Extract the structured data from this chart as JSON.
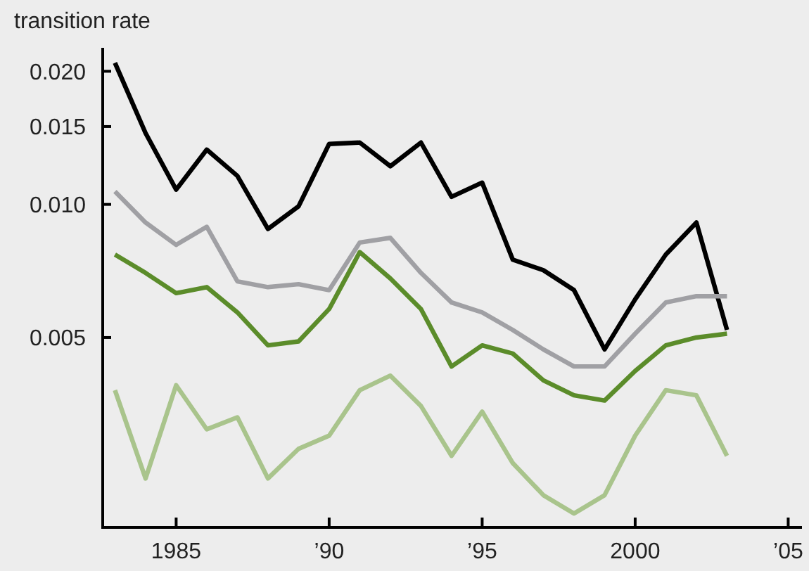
{
  "chart_data": {
    "type": "line",
    "ylabel": "transition rate",
    "log": "y",
    "grid": false,
    "marker": "none",
    "line_style": "solid",
    "x": [
      1983,
      1984,
      1985,
      1986,
      1987,
      1988,
      1989,
      1990,
      1991,
      1992,
      1993,
      1994,
      1995,
      1996,
      1997,
      1998,
      1999,
      2000,
      2001,
      2002,
      2003
    ],
    "xlim": [
      1982.6,
      2005.45
    ],
    "xticks": [
      1985,
      {
        "value": 1990,
        "label": "’90"
      },
      {
        "value": 1995,
        "label": "’95"
      },
      2000,
      {
        "value": 2005,
        "label": "’05"
      }
    ],
    "ylim": [
      0.00186,
      0.0226
    ],
    "yticks": [
      0.005,
      {
        "value": 0.01,
        "label": "0.010"
      },
      0.015,
      {
        "value": 0.02,
        "label": "0.020"
      }
    ],
    "series": [
      {
        "color": "#000000",
        "values": [
          0.0209,
          0.0145,
          0.0108,
          0.0133,
          0.0116,
          0.0088,
          0.0099,
          0.0137,
          0.0138,
          0.0122,
          0.0138,
          0.0104,
          0.0112,
          0.0075,
          0.0071,
          0.0064,
          0.0047,
          0.0061,
          0.0077,
          0.0091,
          0.0052
        ]
      },
      {
        "color": "#a0a0a4",
        "values": [
          0.0107,
          0.0091,
          0.0081,
          0.0089,
          0.0067,
          0.0065,
          0.0066,
          0.0064,
          0.0082,
          0.0084,
          0.007,
          0.006,
          0.0057,
          0.0052,
          0.0047,
          0.0043,
          0.0043,
          0.0051,
          0.006,
          0.0062,
          0.0062
        ]
      },
      {
        "color": "#5b8c2a",
        "values": [
          0.0077,
          0.007,
          0.0063,
          0.0065,
          0.0057,
          0.0048,
          0.0049,
          0.0058,
          0.0078,
          0.0068,
          0.0058,
          0.0043,
          0.0048,
          0.0046,
          0.004,
          0.0037,
          0.0036,
          0.0042,
          0.0048,
          0.005,
          0.0051
        ]
      },
      {
        "color": "#a9c48c",
        "values": [
          0.0038,
          0.0024,
          0.0039,
          0.0031,
          0.0033,
          0.0024,
          0.0028,
          0.003,
          0.0038,
          0.0041,
          0.0035,
          0.0027,
          0.0034,
          0.0026,
          0.0022,
          0.002,
          0.0022,
          0.003,
          0.0038,
          0.0037,
          0.0027
        ]
      }
    ]
  }
}
